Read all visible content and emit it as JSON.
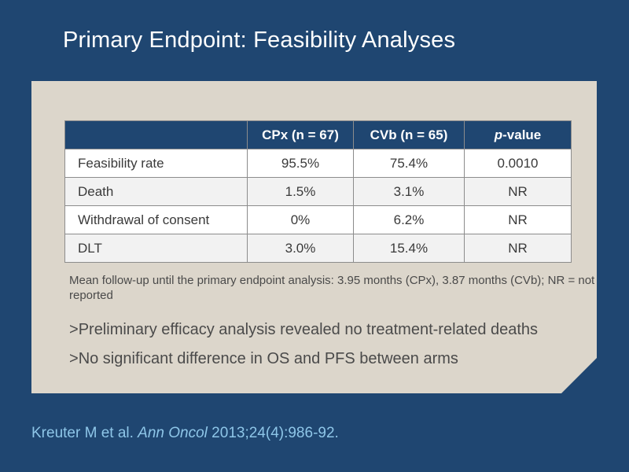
{
  "title": "Primary Endpoint: Feasibility Analyses",
  "table": {
    "headers": {
      "blank": "",
      "cpx": "CPx (n = 67)",
      "cvb": "CVb (n = 65)",
      "p_italic": "p",
      "p_rest": "-value"
    },
    "rows": [
      {
        "label": "Feasibility rate",
        "cpx": "95.5%",
        "cvb": "75.4%",
        "p": "0.0010"
      },
      {
        "label": "Death",
        "cpx": "1.5%",
        "cvb": "3.1%",
        "p": "NR"
      },
      {
        "label": "Withdrawal of consent",
        "cpx": "0%",
        "cvb": "6.2%",
        "p": "NR"
      },
      {
        "label": "DLT",
        "cpx": "3.0%",
        "cvb": "15.4%",
        "p": "NR"
      }
    ]
  },
  "footnote": "Mean follow-up until the primary endpoint analysis: 3.95 months (CPx), 3.87 months (CVb); NR = not reported",
  "bullets": [
    {
      "marker": ">",
      "text": "Preliminary efficacy analysis revealed no treatment-related deaths"
    },
    {
      "marker": ">",
      "text": "No significant difference in OS and PFS between arms"
    }
  ],
  "citation": {
    "authors": "Kreuter M et al. ",
    "journal": "Ann Oncol",
    "details": " 2013;24(4):986-92."
  },
  "colors": {
    "background": "#1f4671",
    "panel": "#dcd6cb",
    "table_header": "#1f4671",
    "citation": "#8ec6e8"
  }
}
